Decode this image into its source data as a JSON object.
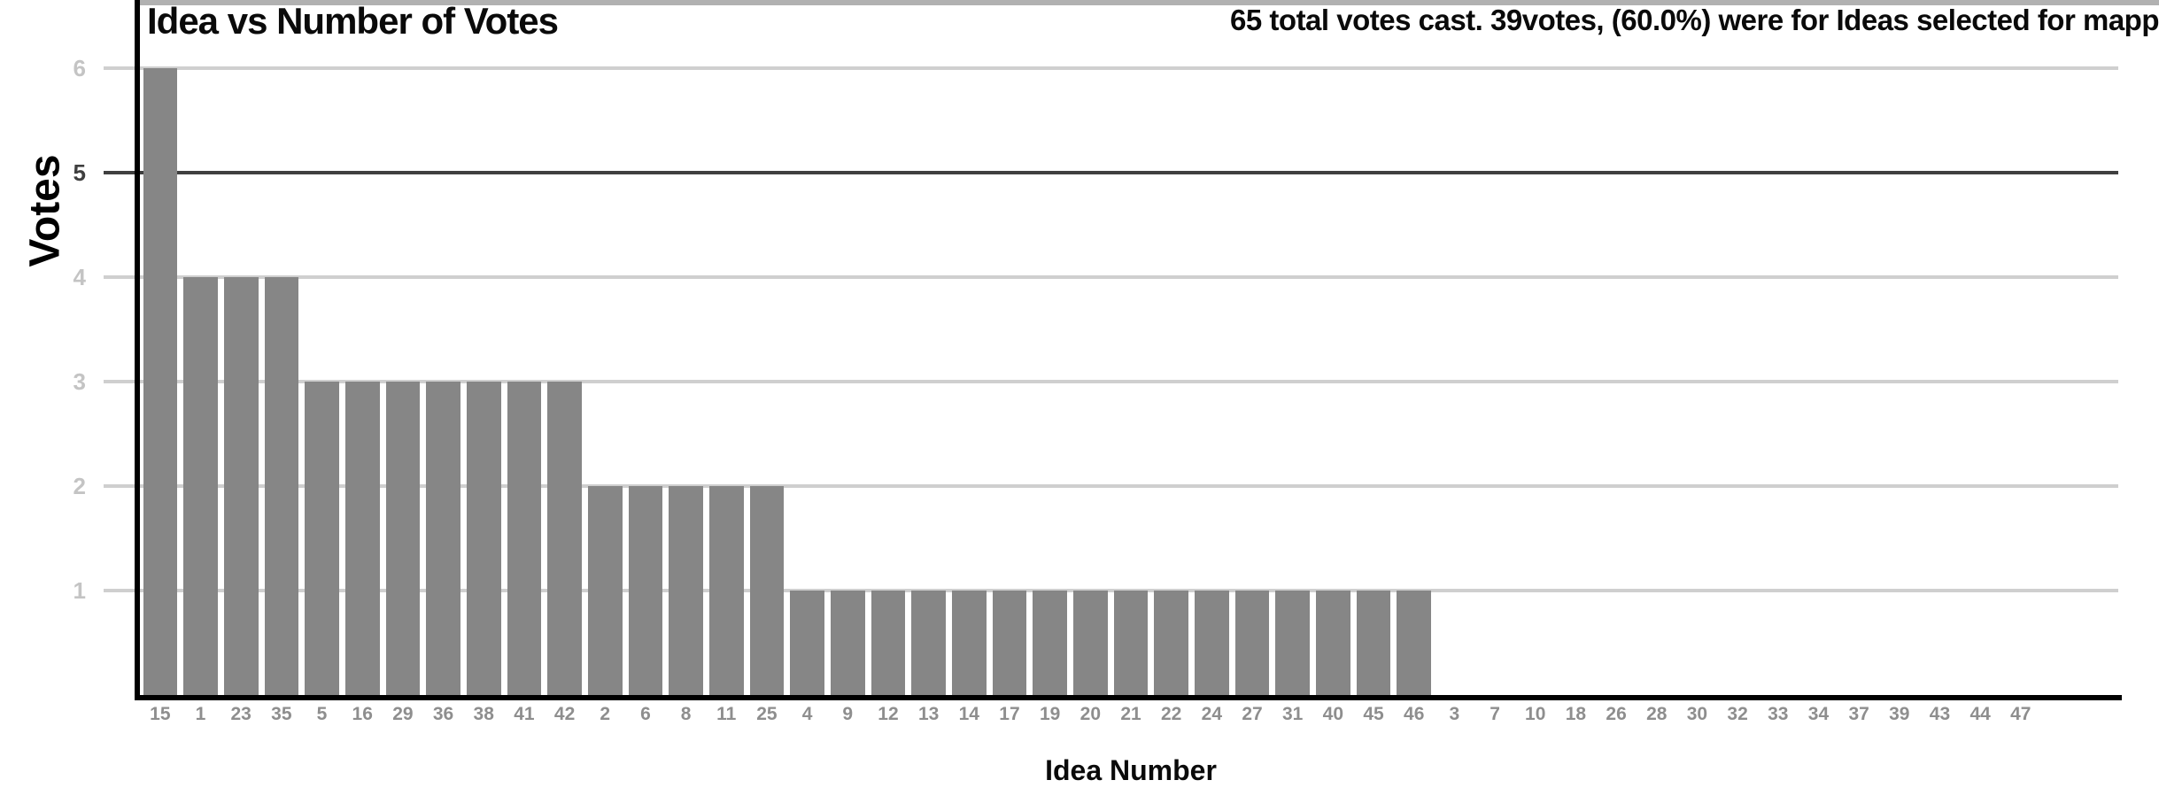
{
  "chart": {
    "title": "Idea vs Number of Votes",
    "annotation": "65 total votes cast. 39votes, (60.0%) were for Ideas selected for mapp",
    "xlabel": "Idea Number",
    "ylabel": "Votes"
  },
  "chart_data": {
    "type": "bar",
    "title": "Idea vs Number of Votes",
    "xlabel": "Idea Number",
    "ylabel": "Votes",
    "annotation": "65 total votes cast. 39votes, (60.0%) were for Ideas selected for mapp",
    "categories": [
      "15",
      "1",
      "23",
      "35",
      "5",
      "16",
      "29",
      "36",
      "38",
      "41",
      "42",
      "2",
      "6",
      "8",
      "11",
      "25",
      "4",
      "9",
      "12",
      "13",
      "14",
      "17",
      "19",
      "20",
      "21",
      "22",
      "24",
      "27",
      "31",
      "40",
      "45",
      "46",
      "3",
      "7",
      "10",
      "18",
      "26",
      "28",
      "30",
      "32",
      "33",
      "34",
      "37",
      "39",
      "43",
      "44",
      "47"
    ],
    "values": [
      6,
      4,
      4,
      4,
      3,
      3,
      3,
      3,
      3,
      3,
      3,
      2,
      2,
      2,
      2,
      2,
      1,
      1,
      1,
      1,
      1,
      1,
      1,
      1,
      1,
      1,
      1,
      1,
      1,
      1,
      1,
      1,
      0,
      0,
      0,
      0,
      0,
      0,
      0,
      0,
      0,
      0,
      0,
      0,
      0,
      0,
      0
    ],
    "yticks": [
      1,
      2,
      3,
      4,
      5,
      6
    ],
    "ylim": [
      0,
      6
    ],
    "emphasized_ytick": 5,
    "grid": "horizontal",
    "legend": "none",
    "empty_trailing_slots": 2,
    "colors": {
      "bar": "#868686",
      "gridline": "#cfcfcf",
      "emphasized_gridline": "#3f3f3f",
      "axis_line": "#000000",
      "y_tick_label": "#c4c4c4",
      "y_tick_label_emphasized": "#3f3f3f",
      "x_tick_label": "#8e8e8e",
      "top_strip": "#b1b1b1",
      "text": "#0a0a0a"
    }
  }
}
